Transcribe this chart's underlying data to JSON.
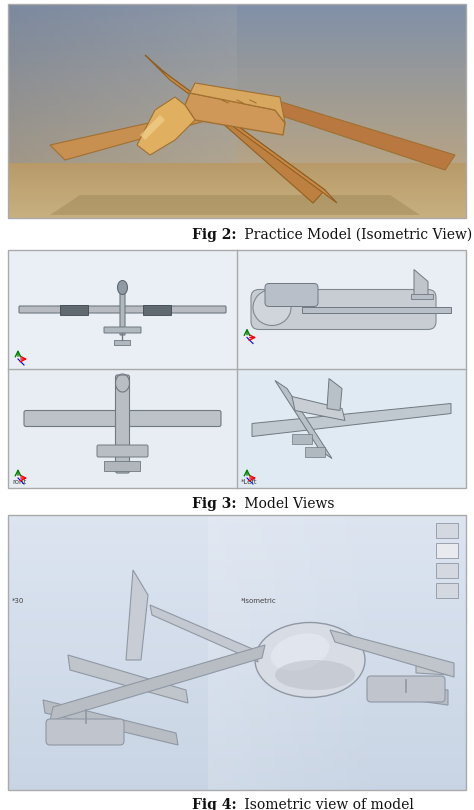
{
  "fig_width": 4.74,
  "fig_height": 8.1,
  "dpi": 100,
  "background_color": "#ffffff",
  "caption1_bold": "Fig 2:",
  "caption1_rest": " Practice Model (Isometric View)",
  "caption2_bold": "Fig 3:",
  "caption2_rest": " Model Views",
  "caption3_bold": "Fig 4:",
  "caption3_rest": " Isometric view of model",
  "caption_fontsize": 10.0,
  "img1_bg_top": "#8a9cb8",
  "img1_bg_bottom": "#d4b882",
  "img2_bg": "#e0e8f0",
  "img3_bg_top": "#dce4ee",
  "img3_bg_bottom": "#c8d4e0",
  "uav_color": "#c8944a",
  "uav_dark": "#a07030",
  "uav2_color": "#c8cdd4",
  "uav2_dark": "#909aa4",
  "uav3_color": "#c8cdd4",
  "uav3_dark": "#909aa4"
}
